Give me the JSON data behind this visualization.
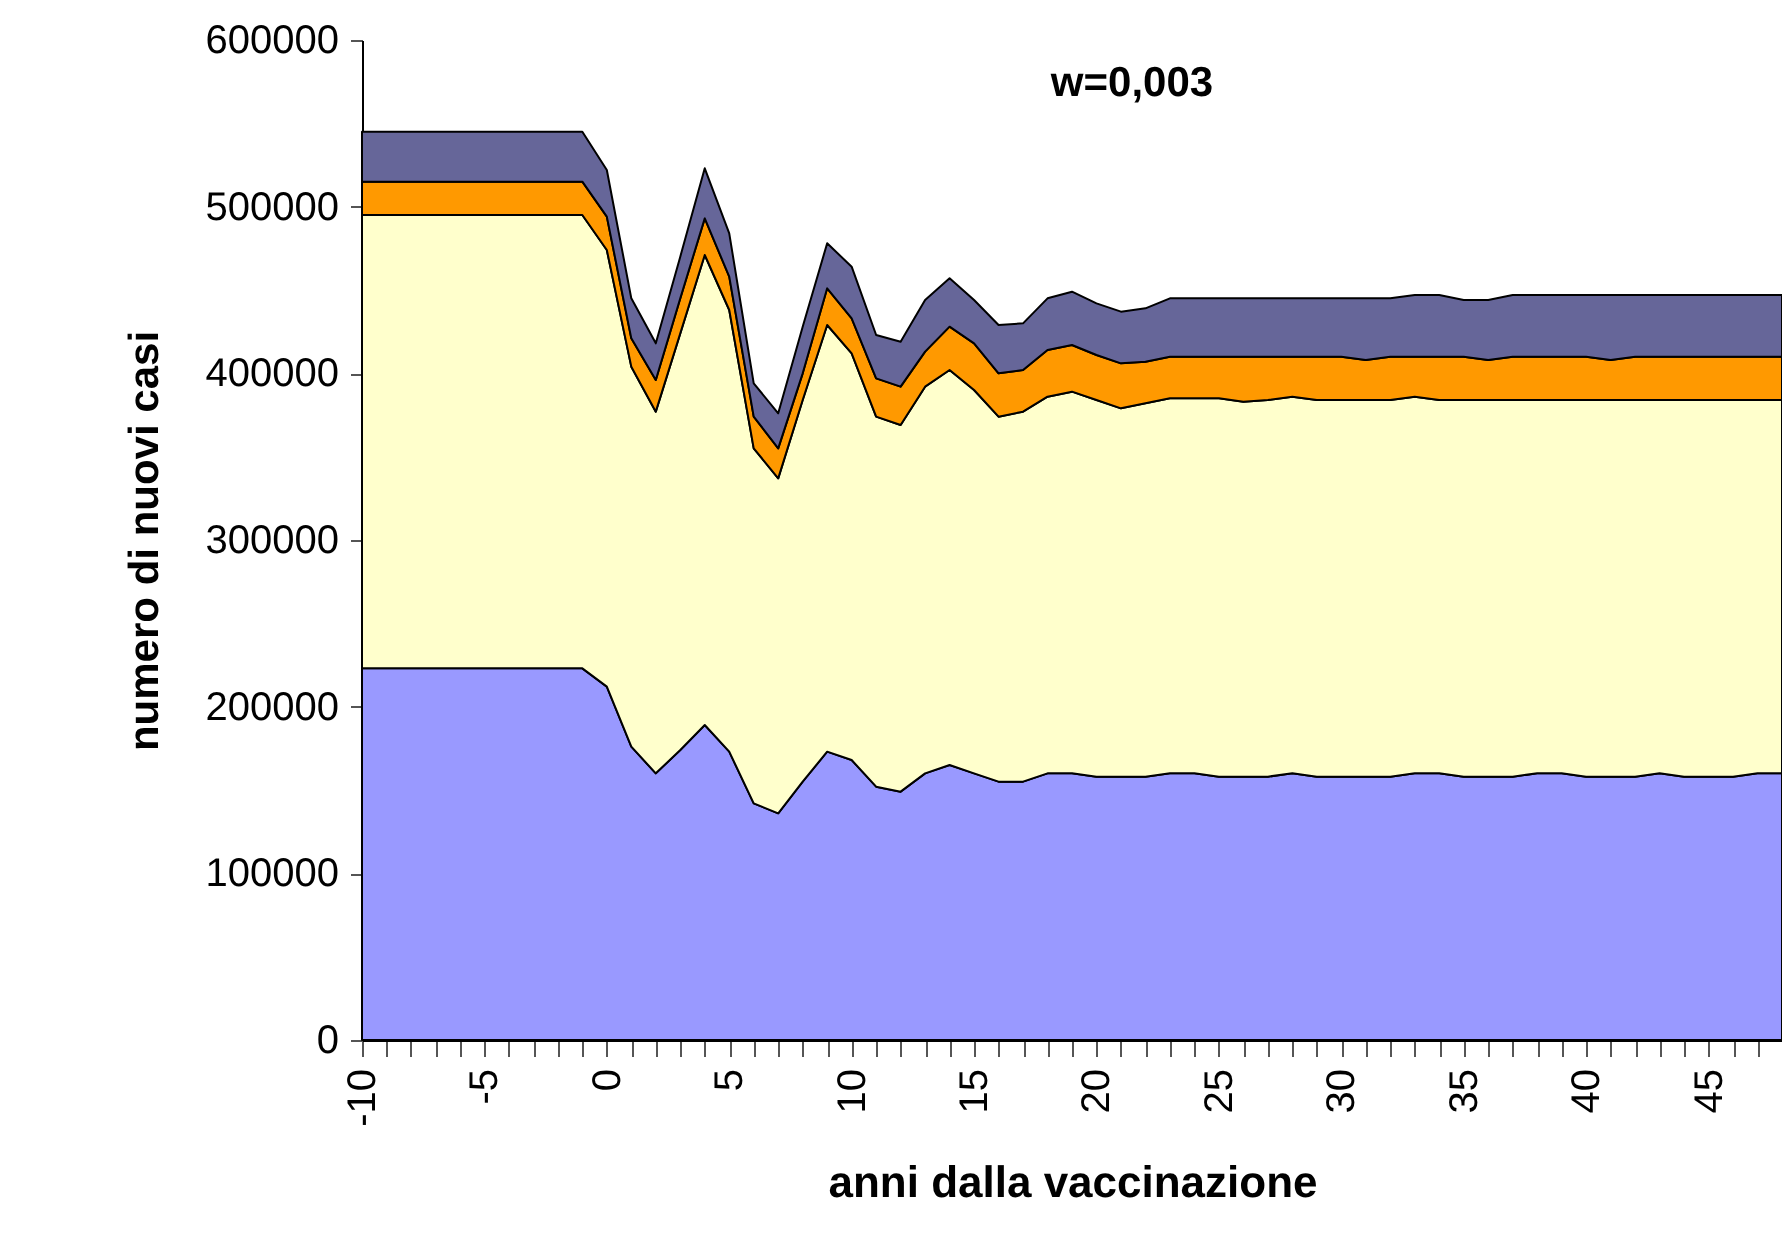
{
  "chart_data": {
    "type": "area",
    "stacked": true,
    "title": "w=0,003",
    "xlabel": "anni dalla vaccinazione",
    "ylabel": "numero di nuovi casi",
    "x": [
      -10,
      -9,
      -8,
      -7,
      -6,
      -5,
      -4,
      -3,
      -2,
      -1,
      0,
      1,
      2,
      3,
      4,
      5,
      6,
      7,
      8,
      9,
      10,
      11,
      12,
      13,
      14,
      15,
      16,
      17,
      18,
      19,
      20,
      21,
      22,
      23,
      24,
      25,
      26,
      27,
      28,
      29,
      30,
      31,
      32,
      33,
      34,
      35,
      36,
      37,
      38,
      39,
      40,
      41,
      42,
      43,
      44,
      45,
      46,
      47,
      48
    ],
    "series": [
      {
        "color": "#9999ff",
        "values": [
          223000,
          223000,
          223000,
          223000,
          223000,
          223000,
          223000,
          223000,
          223000,
          223000,
          212000,
          176000,
          160000,
          174000,
          189000,
          173000,
          142000,
          136000,
          155000,
          173000,
          168000,
          152000,
          149000,
          160000,
          165000,
          160000,
          155000,
          155000,
          160000,
          160000,
          158000,
          158000,
          158000,
          160000,
          160000,
          158000,
          158000,
          158000,
          160000,
          158000,
          158000,
          158000,
          158000,
          160000,
          160000,
          158000,
          158000,
          158000,
          160000,
          160000,
          158000,
          158000,
          158000,
          160000,
          158000,
          158000,
          158000,
          160000,
          160000
        ]
      },
      {
        "color": "#ffffcc",
        "values": [
          272000,
          272000,
          272000,
          272000,
          272000,
          272000,
          272000,
          272000,
          272000,
          272000,
          262000,
          228000,
          217000,
          250000,
          282000,
          265000,
          213000,
          201000,
          229000,
          256000,
          244000,
          222000,
          220000,
          232000,
          237000,
          230000,
          219000,
          222000,
          226000,
          229000,
          226000,
          221000,
          224000,
          225000,
          225000,
          227000,
          225000,
          226000,
          226000,
          226000,
          226000,
          226000,
          226000,
          226000,
          224000,
          226000,
          226000,
          226000,
          224000,
          224000,
          226000,
          226000,
          226000,
          224000,
          226000,
          226000,
          226000,
          224000,
          224000
        ]
      },
      {
        "color": "#ff9900",
        "values": [
          20000,
          20000,
          20000,
          20000,
          20000,
          20000,
          20000,
          20000,
          20000,
          20000,
          20000,
          17000,
          19000,
          21000,
          22000,
          20000,
          19000,
          18000,
          16000,
          22000,
          21000,
          23000,
          23000,
          21000,
          26000,
          28000,
          26000,
          25000,
          28000,
          28000,
          27000,
          27000,
          25000,
          25000,
          25000,
          25000,
          27000,
          26000,
          24000,
          26000,
          26000,
          24000,
          26000,
          24000,
          26000,
          26000,
          24000,
          26000,
          26000,
          26000,
          26000,
          24000,
          26000,
          26000,
          26000,
          26000,
          26000,
          26000,
          26000
        ]
      },
      {
        "color": "#666699",
        "values": [
          30000,
          30000,
          30000,
          30000,
          30000,
          30000,
          30000,
          30000,
          30000,
          30000,
          28000,
          24000,
          22000,
          25000,
          30000,
          26000,
          20000,
          21000,
          28000,
          27000,
          31000,
          26000,
          27000,
          31000,
          29000,
          26000,
          29000,
          28000,
          31000,
          32000,
          31000,
          31000,
          32000,
          35000,
          35000,
          35000,
          35000,
          35000,
          35000,
          35000,
          35000,
          37000,
          35000,
          37000,
          37000,
          34000,
          36000,
          37000,
          37000,
          37000,
          37000,
          39000,
          37000,
          37000,
          37000,
          37000,
          37000,
          37000,
          37000
        ]
      }
    ],
    "xlim": [
      -10,
      48
    ],
    "xticks": [
      -10,
      {
        "value": -9,
        "label": null
      },
      {
        "value": -8,
        "label": null
      },
      {
        "value": -7,
        "label": null
      },
      {
        "value": -6,
        "label": null
      },
      -5,
      {
        "value": -4,
        "label": null
      },
      {
        "value": -3,
        "label": null
      },
      {
        "value": -2,
        "label": null
      },
      {
        "value": -1,
        "label": null
      },
      0,
      {
        "value": 1,
        "label": null
      },
      {
        "value": 2,
        "label": null
      },
      {
        "value": 3,
        "label": null
      },
      {
        "value": 4,
        "label": null
      },
      5,
      {
        "value": 6,
        "label": null
      },
      {
        "value": 7,
        "label": null
      },
      {
        "value": 8,
        "label": null
      },
      {
        "value": 9,
        "label": null
      },
      10,
      {
        "value": 11,
        "label": null
      },
      {
        "value": 12,
        "label": null
      },
      {
        "value": 13,
        "label": null
      },
      {
        "value": 14,
        "label": null
      },
      15,
      {
        "value": 16,
        "label": null
      },
      {
        "value": 17,
        "label": null
      },
      {
        "value": 18,
        "label": null
      },
      {
        "value": 19,
        "label": null
      },
      20,
      {
        "value": 21,
        "label": null
      },
      {
        "value": 22,
        "label": null
      },
      {
        "value": 23,
        "label": null
      },
      {
        "value": 24,
        "label": null
      },
      25,
      {
        "value": 26,
        "label": null
      },
      {
        "value": 27,
        "label": null
      },
      {
        "value": 28,
        "label": null
      },
      {
        "value": 29,
        "label": null
      },
      30,
      {
        "value": 31,
        "label": null
      },
      {
        "value": 32,
        "label": null
      },
      {
        "value": 33,
        "label": null
      },
      {
        "value": 34,
        "label": null
      },
      35,
      {
        "value": 36,
        "label": null
      },
      {
        "value": 37,
        "label": null
      },
      {
        "value": 38,
        "label": null
      },
      {
        "value": 39,
        "label": null
      },
      40,
      {
        "value": 41,
        "label": null
      },
      {
        "value": 42,
        "label": null
      },
      {
        "value": 43,
        "label": null
      },
      {
        "value": 44,
        "label": null
      },
      45,
      {
        "value": 46,
        "label": null
      },
      {
        "value": 47,
        "label": null
      },
      {
        "value": 48,
        "label": null
      }
    ],
    "ylim": [
      0,
      600000
    ],
    "yticks": [
      0,
      100000,
      200000,
      300000,
      400000,
      500000,
      600000
    ],
    "grid": false,
    "legend": false
  }
}
